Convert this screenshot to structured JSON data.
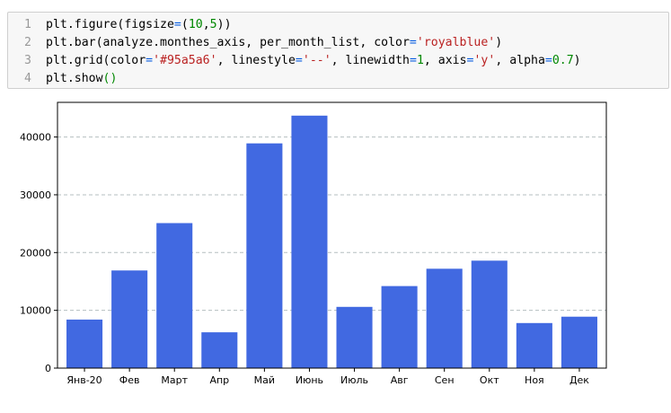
{
  "code_cell": {
    "lines": [
      {
        "num": "1",
        "tokens": [
          {
            "t": "plt.figure(figsize",
            "c": ""
          },
          {
            "t": "=",
            "c": "op"
          },
          {
            "t": "(",
            "c": ""
          },
          {
            "t": "10",
            "c": "num"
          },
          {
            "t": ",",
            "c": ""
          },
          {
            "t": "5",
            "c": "num"
          },
          {
            "t": "))",
            "c": ""
          }
        ]
      },
      {
        "num": "2",
        "tokens": [
          {
            "t": "plt.bar(analyze.monthes_axis, per_month_list, color",
            "c": ""
          },
          {
            "t": "=",
            "c": "op"
          },
          {
            "t": "'royalblue'",
            "c": "str"
          },
          {
            "t": ")",
            "c": ""
          }
        ]
      },
      {
        "num": "3",
        "tokens": [
          {
            "t": "plt.grid(color",
            "c": ""
          },
          {
            "t": "=",
            "c": "op"
          },
          {
            "t": "'#95a5a6'",
            "c": "str"
          },
          {
            "t": ", linestyle",
            "c": ""
          },
          {
            "t": "=",
            "c": "op"
          },
          {
            "t": "'--'",
            "c": "str"
          },
          {
            "t": ", linewidth",
            "c": ""
          },
          {
            "t": "=",
            "c": "op"
          },
          {
            "t": "1",
            "c": "num"
          },
          {
            "t": ", axis",
            "c": ""
          },
          {
            "t": "=",
            "c": "op"
          },
          {
            "t": "'y'",
            "c": "str"
          },
          {
            "t": ", alpha",
            "c": ""
          },
          {
            "t": "=",
            "c": "op"
          },
          {
            "t": "0.7",
            "c": "num"
          },
          {
            "t": ")",
            "c": ""
          }
        ]
      },
      {
        "num": "4",
        "tokens": [
          {
            "t": "plt.show",
            "c": ""
          },
          {
            "t": "()",
            "c": "paren"
          }
        ]
      }
    ]
  },
  "chart_data": {
    "type": "bar",
    "categories": [
      "Янв-20",
      "Фев",
      "Март",
      "Апр",
      "Май",
      "Июнь",
      "Июль",
      "Авг",
      "Сен",
      "Окт",
      "Ноя",
      "Дек"
    ],
    "values": [
      8400,
      16900,
      25100,
      6200,
      38900,
      43700,
      10600,
      14200,
      17200,
      18600,
      7800,
      8900
    ],
    "ylim": [
      0,
      46000
    ],
    "yticks": [
      0,
      10000,
      20000,
      30000,
      40000
    ],
    "ytick_labels": [
      "0",
      "10000",
      "20000",
      "30000",
      "40000"
    ],
    "grid": "y",
    "bar_color": "#4169e1",
    "grid_color": "#95a5a6"
  }
}
